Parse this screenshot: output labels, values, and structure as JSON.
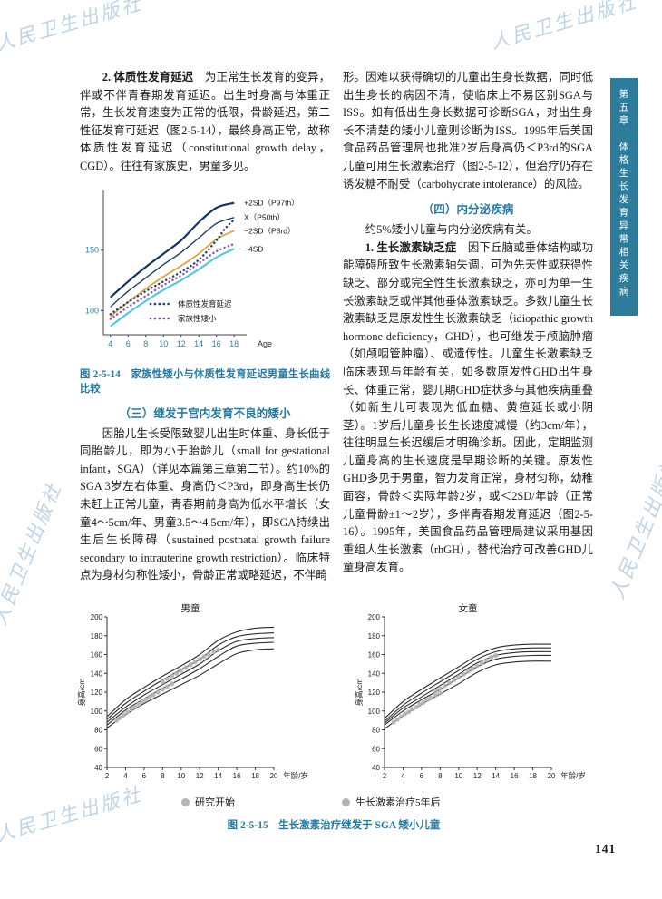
{
  "sidebar": {
    "chapter": "第五章",
    "title": "体格生长发育异常相关疾病"
  },
  "page_number": "141",
  "watermark_text": "人民卫生出版社",
  "left_column": {
    "para1_heading": "2. 体质性发育延迟",
    "para1_body": "　为正常生长发育的变异，伴或不伴青春期发育延迟。出生时身高与体重正常，生长发育速度为正常的低限，骨龄延迟，第二性征发育可延迟（图2-5-14），最终身高正常，故称体质性发育延迟（constitutional growth delay，CGD）。往往有家族史，男童多见。",
    "fig14_caption": "图 2-5-14　家族性矮小与体质性发育延迟男童生长曲线比较",
    "section3_heading": "（三）继发于宫内发育不良的矮小",
    "para2": "因胎儿生长受限致婴儿出生时体重、身长低于同胎龄儿，即为小于胎龄儿（small for gestational infant，SGA）（详见本篇第三章第二节）。约10%的SGA 3岁左右体重、身高仍＜P3rd，即身高生长仍未赶上正常儿童，青春期前身高为低水平增长（女童4～5cm/年、男童3.5～4.5cm/年），即SGA持续出生后生长障碍（sustained postnatal growth failure secondary to intrauterine growth restriction）。临床特点为身材匀称性矮小，骨龄正常或略延迟，不伴畸"
  },
  "right_column": {
    "para1": "形。因难以获得确切的儿童出生身长数据，同时低出生身长的病因不清，使临床上不易区别SGA与ISS。如有低出生身长数据可诊断SGA，对出生身长不清楚的矮小儿童则诊断为ISS。1995年后美国食品药品管理局也批准2岁后身高仍＜P3rd的SGA儿童可用生长激素治疗（图2-5-12），但治疗仍存在诱发糖不耐受（carbohydrate intolerance）的风险。",
    "section4_heading": "（四）内分泌疾病",
    "para2": "约5%矮小儿童与内分泌疾病有关。",
    "para3_heading": "1. 生长激素缺乏症",
    "para3_body": "　因下丘脑或垂体结构或功能障碍所致生长激素轴失调，可为先天性或获得性缺乏、部分或完全性生长激素缺乏，亦可为单一生长激素缺乏或伴其他垂体激素缺乏。多数儿童生长激素缺乏是原发性生长激素缺乏（idiopathic growth hormone deficiency，GHD），也可继发于颅脑肿瘤（如颅咽管肿瘤）、或遗传性。儿童生长激素缺乏临床表现与年龄有关，如多数原发性GHD出生身长、体重正常，婴儿期GHD症状多与其他疾病重叠（如新生儿可表现为低血糖、黄疸延长或小阴茎）。1岁后儿童身长生长速度减慢（约3cm/年），往往明显生长迟缓后才明确诊断。因此，定期监测儿童身高的生长速度是早期诊断的关键。原发性GHD多见于男童，智力发育正常，身材匀称，幼稚面容，骨龄＜实际年龄2岁，或＜2SD/年龄（正常儿童骨龄±1～2岁），多伴青春期发育延迟（图2-5-16）。1995年，美国食品药品管理局建议采用基因重组人生长激素（rhGH），替代治疗可改善GHD儿童身高发育。"
  },
  "figure15": {
    "caption": "图 2-5-15　生长激素治疗继发于 SGA 矮小儿童",
    "legend": [
      {
        "label": "研究开始",
        "color": "#b4b4b4"
      },
      {
        "label": "生长激素治疗5年后",
        "color": "#b4b4b4"
      }
    ]
  },
  "chart_data": [
    {
      "id": "fig-2-5-14",
      "type": "line",
      "title": "家族性矮小与体质性发育延迟男童生长曲线比较",
      "xlabel": "Age",
      "ylabel": "",
      "xlim": [
        3.2,
        18.6
      ],
      "ylim": [
        80,
        200
      ],
      "x_ticks": [
        4,
        6,
        8,
        10,
        12,
        14,
        16,
        18
      ],
      "y_ticks": [
        100,
        150
      ],
      "series": [
        {
          "name": "+2SD（P97th）",
          "style": "solid",
          "color": "#16355d",
          "width": 2.2,
          "x": [
            4,
            6,
            8,
            10,
            12,
            14,
            16,
            18
          ],
          "y": [
            111,
            124,
            136,
            147,
            158,
            173,
            185,
            189
          ]
        },
        {
          "name": "X（P50th）",
          "style": "solid",
          "color": "#16355d",
          "width": 1.3,
          "x": [
            4,
            6,
            8,
            10,
            12,
            14,
            16,
            18
          ],
          "y": [
            103,
            116,
            127,
            138,
            148,
            160,
            172,
            177
          ]
        },
        {
          "name": "−2SD（P3rd）",
          "style": "solid",
          "color": "#e2a03c",
          "width": 1.7,
          "x": [
            4,
            6,
            8,
            10,
            12,
            14,
            16,
            18
          ],
          "y": [
            95,
            107,
            118,
            128,
            137,
            147,
            159,
            166
          ]
        },
        {
          "name": "−4SD",
          "style": "solid",
          "color": "#55c4e3",
          "width": 2.1,
          "x": [
            4,
            6,
            8,
            10,
            12,
            14,
            16,
            18
          ],
          "y": [
            87,
            98,
            108,
            117,
            125,
            134,
            144,
            151
          ]
        },
        {
          "name": "体质性发育延迟",
          "style": "dotted",
          "color": "#1c3f6e",
          "width": 2.4,
          "x": [
            4,
            6,
            8,
            10,
            12,
            14,
            16,
            17,
            18
          ],
          "y": [
            97,
            107,
            116,
            124,
            132,
            142,
            158,
            168,
            175
          ]
        },
        {
          "name": "家族性矮小",
          "style": "dotted",
          "color": "#8a5aa5",
          "width": 2.4,
          "x": [
            4,
            6,
            8,
            10,
            12,
            14,
            16,
            18
          ],
          "y": [
            93,
            103,
            112,
            121,
            129,
            139,
            149,
            155
          ]
        }
      ],
      "right_labels": [
        true,
        true,
        true,
        true,
        false,
        false
      ],
      "legend": [
        "体质性发育延迟",
        "家族性矮小"
      ]
    },
    {
      "id": "fig-2-5-15-boys",
      "type": "line+scatter",
      "title": "男童",
      "xlabel": "年龄/岁",
      "ylabel": "身高/cm",
      "xlim": [
        2,
        20
      ],
      "ylim": [
        40,
        200
      ],
      "x_ticks": [
        2,
        4,
        6,
        8,
        10,
        12,
        14,
        16,
        18,
        20
      ],
      "y_ticks": [
        40,
        60,
        80,
        100,
        120,
        140,
        160,
        180,
        200
      ],
      "curves_x": [
        2,
        4,
        6,
        8,
        10,
        12,
        14,
        16,
        18,
        20
      ],
      "curves": [
        {
          "name": "P97",
          "y": [
            94,
            112,
            125,
            137,
            148,
            160,
            175,
            184,
            188,
            189
          ]
        },
        {
          "name": "P75",
          "y": [
            91,
            108,
            121,
            133,
            144,
            155,
            170,
            179,
            182,
            183
          ]
        },
        {
          "name": "P50",
          "y": [
            88,
            104,
            117,
            128,
            139,
            150,
            164,
            174,
            177,
            178
          ]
        },
        {
          "name": "P25",
          "y": [
            85,
            101,
            113,
            124,
            134,
            145,
            158,
            169,
            172,
            173
          ]
        },
        {
          "name": "P3",
          "y": [
            82,
            96,
            108,
            118,
            128,
            138,
            150,
            161,
            165,
            166
          ]
        }
      ],
      "scatter": [
        {
          "name": "研究开始",
          "points": [
            [
              3,
              90
            ],
            [
              3.4,
              93
            ],
            [
              3.8,
              96
            ],
            [
              4.2,
              99
            ],
            [
              4.6,
              102
            ],
            [
              5,
              104
            ],
            [
              5.4,
              107
            ],
            [
              5.8,
              110
            ],
            [
              6.2,
              112
            ],
            [
              6.6,
              115
            ],
            [
              7,
              117
            ],
            [
              7.5,
              120
            ],
            [
              8,
              123
            ],
            [
              8.5,
              126
            ],
            [
              9,
              129
            ]
          ]
        },
        {
          "name": "生长激素治疗5年后",
          "points": [
            [
              8,
              131
            ],
            [
              8.5,
              134
            ],
            [
              9,
              137
            ],
            [
              9.5,
              140
            ],
            [
              10,
              143
            ],
            [
              10.5,
              146
            ],
            [
              11,
              149
            ],
            [
              11.5,
              152
            ],
            [
              12,
              155
            ],
            [
              12.5,
              158
            ],
            [
              13,
              160
            ],
            [
              13.5,
              163
            ],
            [
              14,
              165
            ]
          ]
        }
      ]
    },
    {
      "id": "fig-2-5-15-girls",
      "type": "line+scatter",
      "title": "女童",
      "xlabel": "年龄/岁",
      "ylabel": "身高/cm",
      "xlim": [
        2,
        20
      ],
      "ylim": [
        40,
        200
      ],
      "x_ticks": [
        2,
        4,
        6,
        8,
        10,
        12,
        14,
        16,
        18,
        20
      ],
      "y_ticks": [
        40,
        60,
        80,
        100,
        120,
        140,
        160,
        180,
        200
      ],
      "curves_x": [
        2,
        4,
        6,
        8,
        10,
        12,
        14,
        16,
        18,
        20
      ],
      "curves": [
        {
          "name": "P97",
          "y": [
            92,
            110,
            123,
            135,
            147,
            159,
            167,
            170,
            171,
            171
          ]
        },
        {
          "name": "P75",
          "y": [
            89,
            106,
            119,
            131,
            143,
            155,
            163,
            166,
            167,
            167
          ]
        },
        {
          "name": "P50",
          "y": [
            87,
            103,
            115,
            127,
            139,
            151,
            159,
            162,
            163,
            163
          ]
        },
        {
          "name": "P25",
          "y": [
            85,
            100,
            112,
            123,
            135,
            147,
            155,
            158,
            159,
            159
          ]
        },
        {
          "name": "P3",
          "y": [
            81,
            95,
            107,
            118,
            129,
            141,
            149,
            152,
            153,
            153
          ]
        }
      ],
      "scatter": [
        {
          "name": "研究开始",
          "points": [
            [
              3,
              88
            ],
            [
              3.4,
              91
            ],
            [
              3.8,
              94
            ],
            [
              4.2,
              97
            ],
            [
              4.6,
              99
            ],
            [
              5,
              102
            ],
            [
              5.4,
              104
            ],
            [
              5.8,
              107
            ],
            [
              6.2,
              109
            ],
            [
              6.6,
              112
            ],
            [
              7,
              114
            ],
            [
              7.5,
              117
            ],
            [
              8,
              119
            ]
          ]
        },
        {
          "name": "生长激素治疗5年后",
          "points": [
            [
              7.5,
              121
            ],
            [
              8,
              124
            ],
            [
              8.5,
              127
            ],
            [
              9,
              130
            ],
            [
              9.5,
              133
            ],
            [
              10,
              136
            ],
            [
              10.5,
              139
            ],
            [
              11,
              142
            ],
            [
              11.5,
              145
            ],
            [
              12,
              148
            ],
            [
              12.5,
              151
            ],
            [
              13,
              154
            ],
            [
              13.5,
              157
            ],
            [
              14,
              159
            ]
          ]
        }
      ]
    }
  ]
}
